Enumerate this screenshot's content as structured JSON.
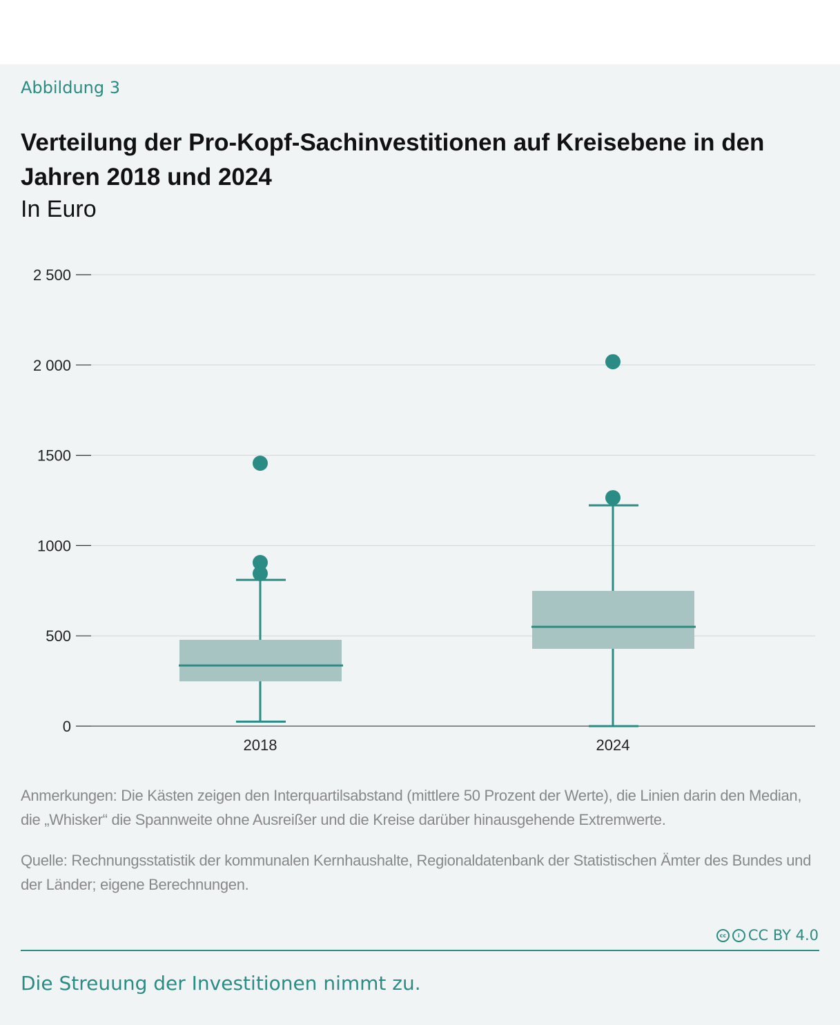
{
  "kicker": "Abbildung 3",
  "title": "Verteilung der Pro-Kopf-Sachinvestitionen auf Kreisebene in den Jahren 2018 und 2024",
  "subtitle": "In Euro",
  "chart_data": {
    "type": "boxplot",
    "categories": [
      "2018",
      "2024"
    ],
    "ylim": [
      0,
      2500
    ],
    "yticks": [
      0,
      500,
      1000,
      1500,
      2000,
      2500
    ],
    "ytick_labels": [
      "0",
      "500",
      "1000",
      "1500",
      "2 000",
      "2 500"
    ],
    "grid": true,
    "boxes": [
      {
        "category": "2018",
        "whisker_low": 25,
        "q1": 248,
        "median": 336,
        "q3": 478,
        "whisker_high": 810,
        "outliers": [
          845,
          906,
          1456
        ]
      },
      {
        "category": "2024",
        "whisker_low": 0,
        "q1": 428,
        "median": 550,
        "q3": 749,
        "whisker_high": 1223,
        "outliers": [
          1265,
          2018
        ]
      }
    ],
    "colors": {
      "box": "#a8c4c2",
      "line": "#2a8c84",
      "grid": "#cfd6d8"
    }
  },
  "notes": {
    "remarks": "Anmerkungen: Die Kästen zeigen den Interquartilsabstand (mittlere 50 Prozent der Werte), die Linien darin den Median, die „Whisker“ die Spannweite ohne Ausreißer und die Kreise darüber hinausgehende Extremwerte.",
    "source": "Quelle: Rechnungsstatistik der kommunalen Kernhaushalte, Regionaldatenbank der Statistischen Ämter des Bundes und der Länder; eigene Berechnungen."
  },
  "license": "CC BY 4.0",
  "takeaway": "Die Streuung der Investitionen nimmt zu."
}
